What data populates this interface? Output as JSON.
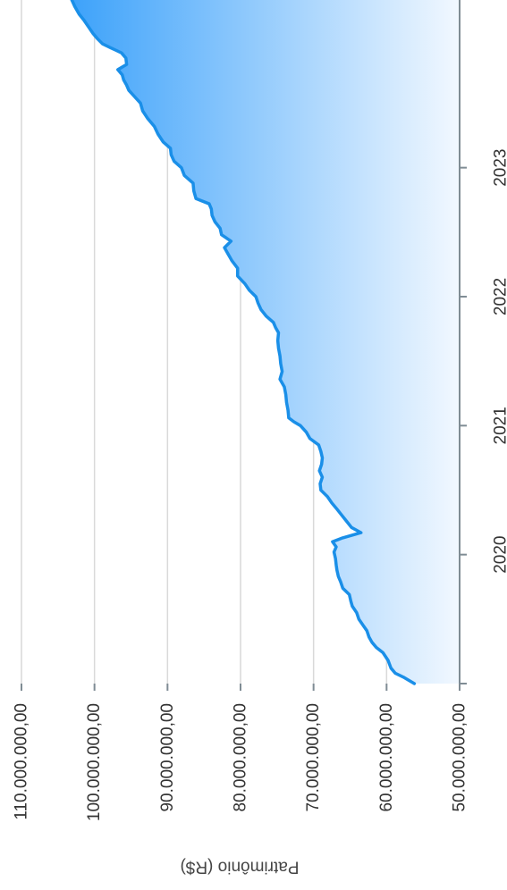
{
  "chart_data": {
    "type": "area",
    "title": "",
    "ylabel": "Patrimônio (R$)",
    "xlabel": "",
    "orientation": "rotated-90-clockwise",
    "x_ticks": [
      {
        "value": 2020,
        "label": "2020"
      },
      {
        "value": 2021,
        "label": "2021"
      },
      {
        "value": 2022,
        "label": "2022"
      },
      {
        "value": 2023,
        "label": "2023"
      }
    ],
    "y_ticks": [
      {
        "value": 50000000,
        "label": "50.000.000,00"
      },
      {
        "value": 60000000,
        "label": "60.000.000,00"
      },
      {
        "value": 70000000,
        "label": "70.000.000,00"
      },
      {
        "value": 80000000,
        "label": "80.000.000,00"
      },
      {
        "value": 90000000,
        "label": "90.000.000,00"
      },
      {
        "value": 100000000,
        "label": "100.000.000,00"
      },
      {
        "value": 110000000,
        "label": "110.000.000,00"
      }
    ],
    "xlim": [
      2019,
      2024.3
    ],
    "ylim": [
      50000000,
      110000000
    ],
    "grid": true,
    "legend": "none",
    "colors": {
      "line": "#1a8fe8",
      "fill_top": "#3da2fa",
      "fill_bottom": "#f2f8ff",
      "grid": "#d9d9d9",
      "axis": "#7f8c94"
    },
    "series": [
      {
        "values": [
          [
            2019.0,
            56200000
          ],
          [
            2019.05,
            57700000
          ],
          [
            2019.08,
            58800000
          ],
          [
            2019.12,
            59400000
          ],
          [
            2019.18,
            59800000
          ],
          [
            2019.24,
            60500000
          ],
          [
            2019.28,
            61400000
          ],
          [
            2019.32,
            62000000
          ],
          [
            2019.36,
            62400000
          ],
          [
            2019.41,
            62700000
          ],
          [
            2019.45,
            63200000
          ],
          [
            2019.5,
            63800000
          ],
          [
            2019.55,
            64100000
          ],
          [
            2019.6,
            64700000
          ],
          [
            2019.64,
            64900000
          ],
          [
            2019.69,
            65100000
          ],
          [
            2019.74,
            66000000
          ],
          [
            2019.79,
            66300000
          ],
          [
            2019.83,
            66600000
          ],
          [
            2019.88,
            66800000
          ],
          [
            2019.92,
            66900000
          ],
          [
            2019.97,
            67000000
          ],
          [
            2020.02,
            67200000
          ],
          [
            2020.06,
            66900000
          ],
          [
            2020.1,
            67400000
          ],
          [
            2020.13,
            66000000
          ],
          [
            2020.17,
            63500000
          ],
          [
            2020.21,
            64800000
          ],
          [
            2020.26,
            65500000
          ],
          [
            2020.31,
            66200000
          ],
          [
            2020.36,
            66900000
          ],
          [
            2020.4,
            67500000
          ],
          [
            2020.45,
            68100000
          ],
          [
            2020.5,
            69000000
          ],
          [
            2020.55,
            69100000
          ],
          [
            2020.6,
            68800000
          ],
          [
            2020.65,
            69200000
          ],
          [
            2020.7,
            68900000
          ],
          [
            2020.75,
            68800000
          ],
          [
            2020.8,
            69000000
          ],
          [
            2020.85,
            69300000
          ],
          [
            2020.9,
            70500000
          ],
          [
            2020.95,
            71000000
          ],
          [
            2021.0,
            71800000
          ],
          [
            2021.03,
            72700000
          ],
          [
            2021.06,
            73400000
          ],
          [
            2021.12,
            73500000
          ],
          [
            2021.18,
            73700000
          ],
          [
            2021.24,
            73800000
          ],
          [
            2021.3,
            74000000
          ],
          [
            2021.36,
            74600000
          ],
          [
            2021.42,
            74300000
          ],
          [
            2021.48,
            74500000
          ],
          [
            2021.54,
            74600000
          ],
          [
            2021.6,
            74800000
          ],
          [
            2021.66,
            74900000
          ],
          [
            2021.72,
            74800000
          ],
          [
            2021.76,
            75200000
          ],
          [
            2021.8,
            75500000
          ],
          [
            2021.85,
            76500000
          ],
          [
            2021.9,
            77200000
          ],
          [
            2021.95,
            77600000
          ],
          [
            2022.0,
            77900000
          ],
          [
            2022.05,
            78800000
          ],
          [
            2022.1,
            79400000
          ],
          [
            2022.16,
            80400000
          ],
          [
            2022.22,
            80400000
          ],
          [
            2022.28,
            81200000
          ],
          [
            2022.33,
            81700000
          ],
          [
            2022.38,
            82200000
          ],
          [
            2022.43,
            81300000
          ],
          [
            2022.48,
            82600000
          ],
          [
            2022.53,
            82800000
          ],
          [
            2022.58,
            83500000
          ],
          [
            2022.63,
            83900000
          ],
          [
            2022.68,
            84000000
          ],
          [
            2022.72,
            84300000
          ],
          [
            2022.76,
            86100000
          ],
          [
            2022.82,
            86400000
          ],
          [
            2022.88,
            86500000
          ],
          [
            2022.94,
            87700000
          ],
          [
            2023.0,
            88100000
          ],
          [
            2023.05,
            89100000
          ],
          [
            2023.1,
            89500000
          ],
          [
            2023.15,
            89600000
          ],
          [
            2023.2,
            90600000
          ],
          [
            2023.26,
            91300000
          ],
          [
            2023.32,
            91800000
          ],
          [
            2023.38,
            92700000
          ],
          [
            2023.44,
            93400000
          ],
          [
            2023.5,
            93700000
          ],
          [
            2023.55,
            94500000
          ],
          [
            2023.6,
            95300000
          ],
          [
            2023.64,
            95600000
          ],
          [
            2023.68,
            96000000
          ],
          [
            2023.72,
            96200000
          ],
          [
            2023.76,
            96800000
          ],
          [
            2023.8,
            95600000
          ],
          [
            2023.85,
            95700000
          ],
          [
            2023.89,
            96300000
          ],
          [
            2023.93,
            97800000
          ],
          [
            2023.96,
            98900000
          ],
          [
            2024.0,
            99600000
          ],
          [
            2024.04,
            100200000
          ],
          [
            2024.09,
            100800000
          ],
          [
            2024.14,
            101400000
          ],
          [
            2024.19,
            102100000
          ],
          [
            2024.25,
            102700000
          ],
          [
            2024.3,
            103100000
          ]
        ]
      }
    ]
  }
}
